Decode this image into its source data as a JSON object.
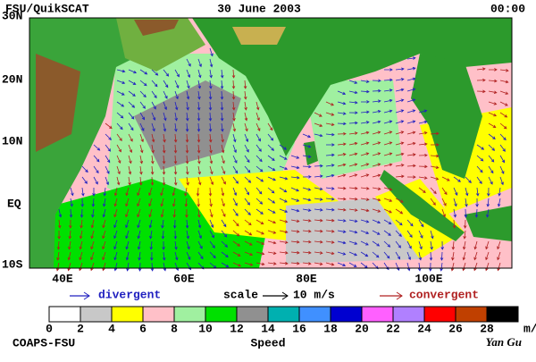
{
  "header": {
    "title": "FSU/QuikSCAT",
    "date": "30 June 2003",
    "time": "00:00"
  },
  "map": {
    "lat_labels": [
      "30N",
      "20N",
      "10N",
      "EQ",
      "10S"
    ],
    "lon_labels": [
      "40E",
      "60E",
      "80E",
      "100E"
    ]
  },
  "legend": {
    "divergent": "divergent",
    "scale": "scale",
    "scale_value": "10 m/s",
    "convergent": "convergent",
    "divergent_color": "#2020c0",
    "convergent_color": "#b02020"
  },
  "colorbar": {
    "ticks": [
      0,
      2,
      4,
      6,
      8,
      10,
      12,
      14,
      16,
      18,
      20,
      22,
      24,
      26,
      28
    ],
    "unit": "m/s",
    "label": "Speed",
    "colors": [
      "#ffffff",
      "#c8c8c8",
      "#ffff00",
      "#ffc0c8",
      "#a0f0a0",
      "#00e000",
      "#909090",
      "#00b0b0",
      "#4090ff",
      "#0000d0",
      "#ff60ff",
      "#b080ff",
      "#ff0000",
      "#c04000",
      "#000000"
    ]
  },
  "footer": {
    "left": "COAPS-FSU",
    "right": "Yan Gu"
  }
}
